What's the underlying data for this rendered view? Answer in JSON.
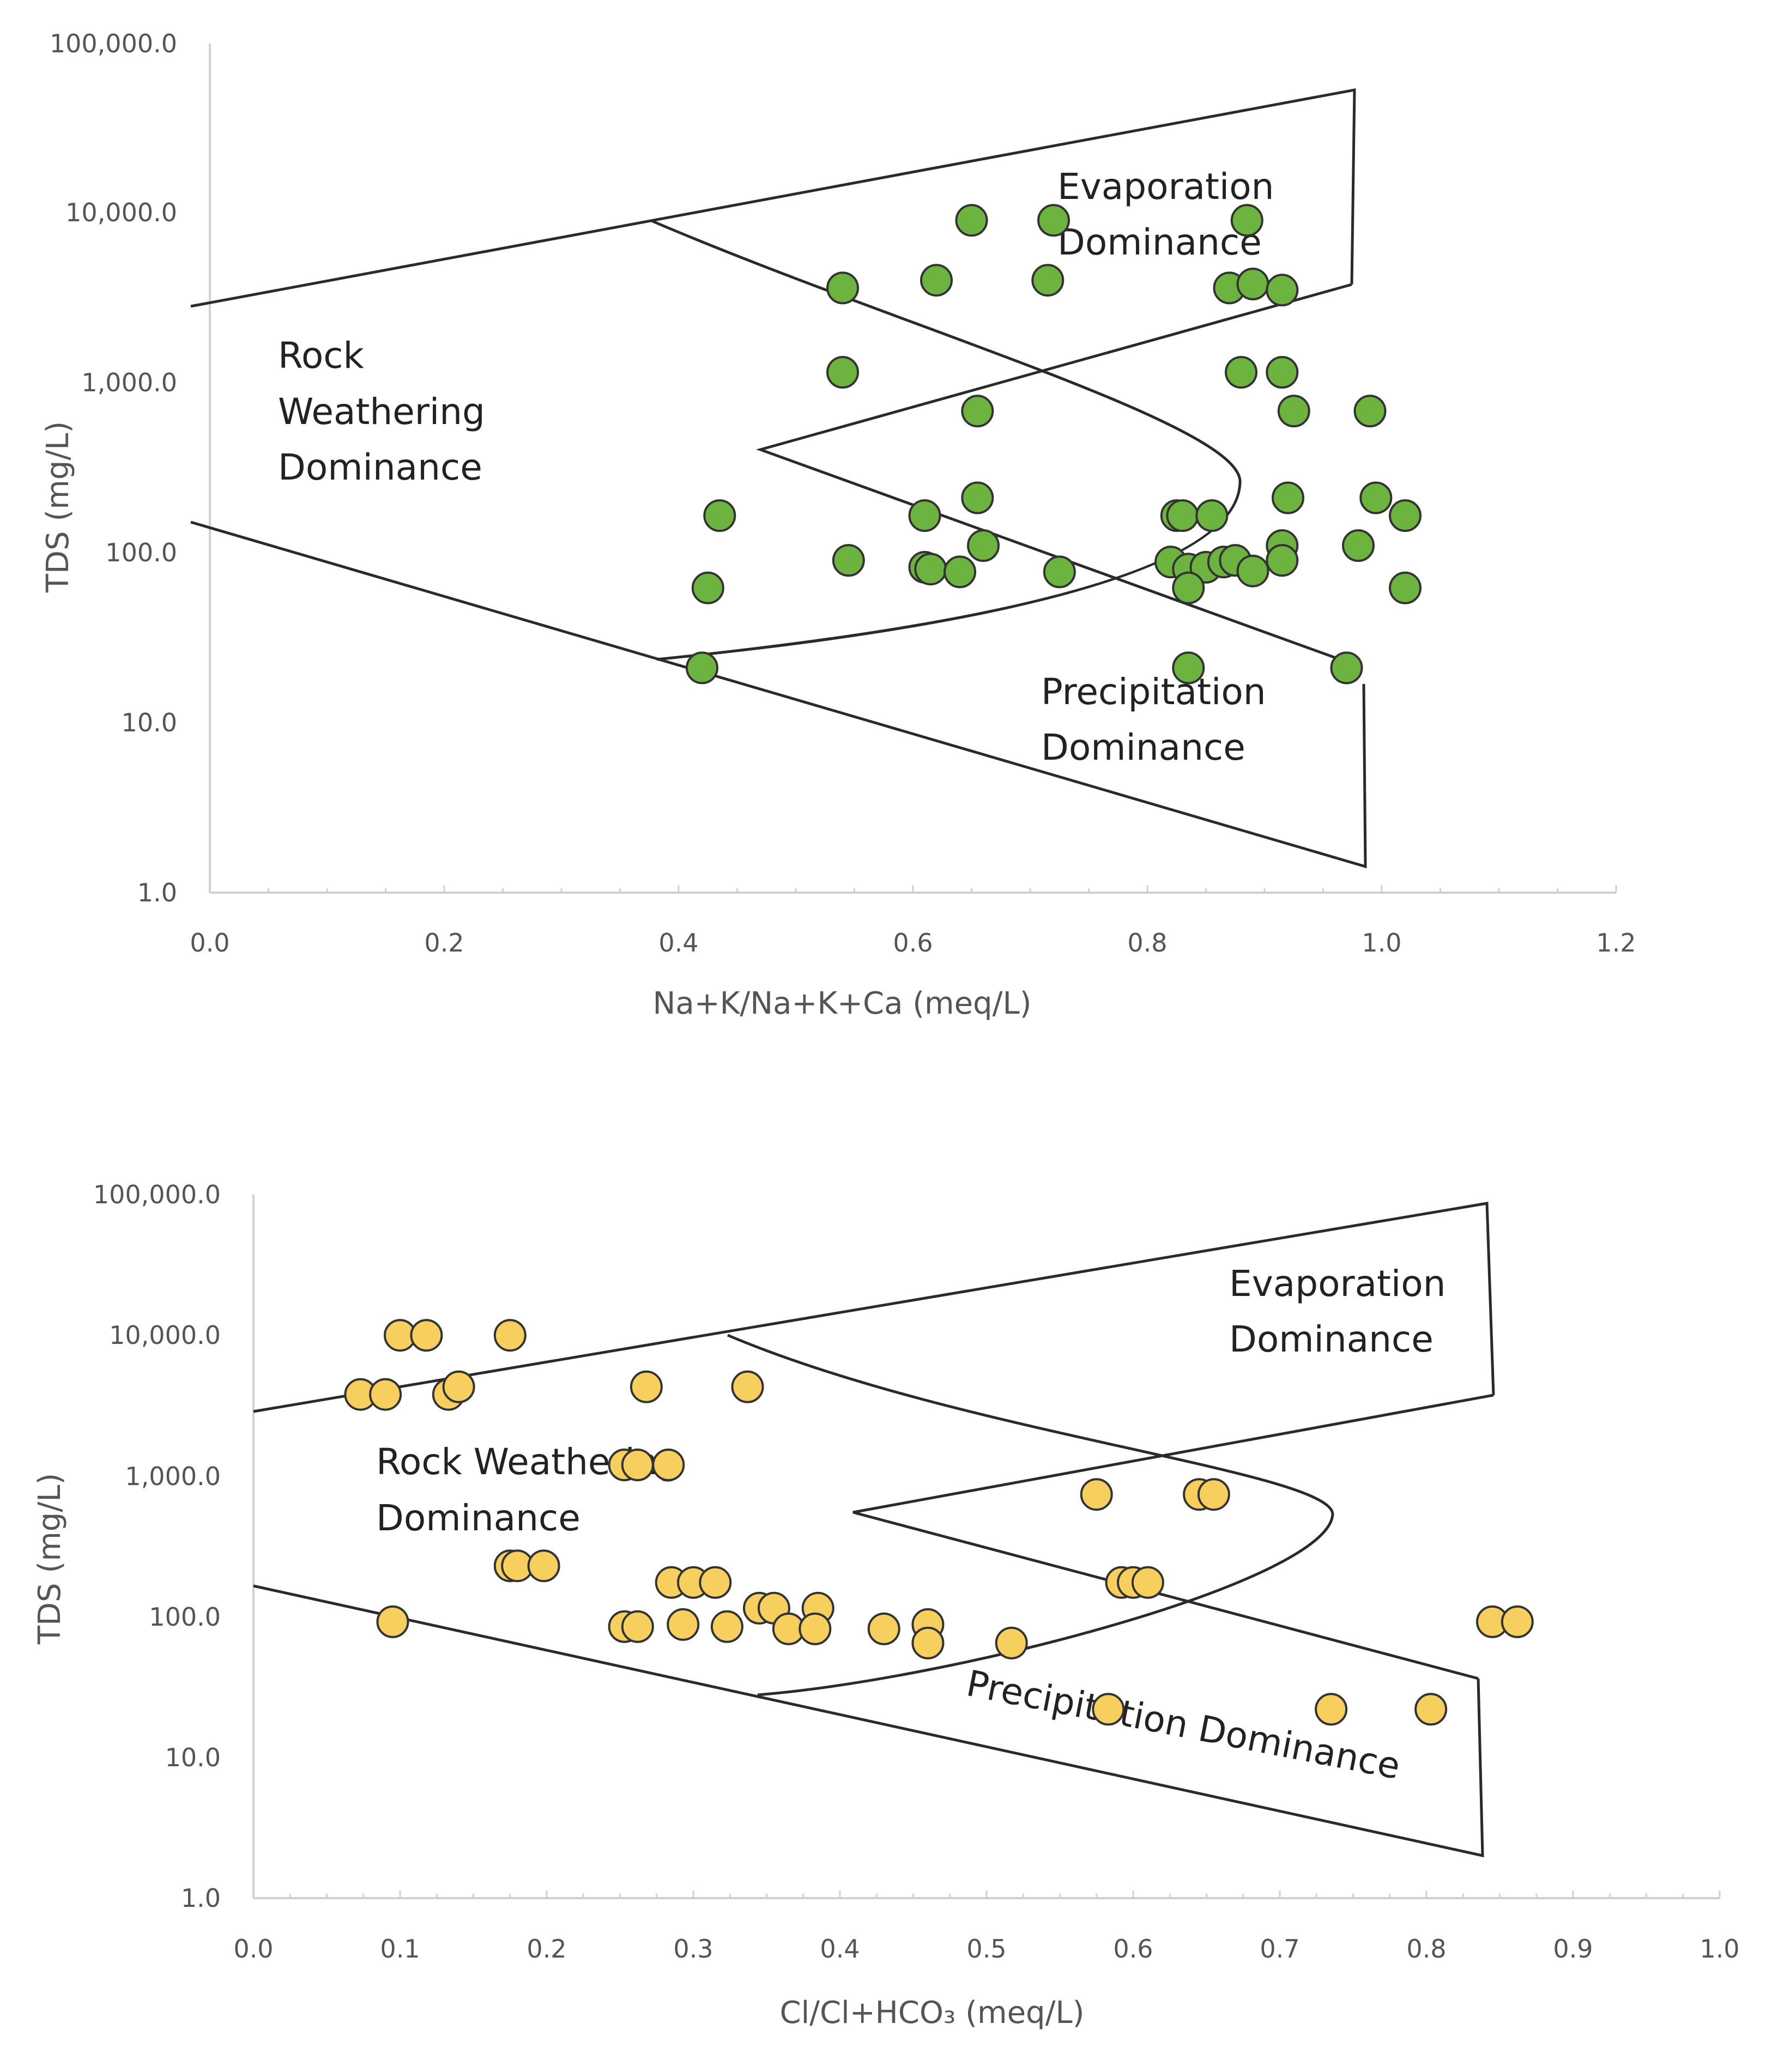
{
  "colors": {
    "na_marker": "#6db33f",
    "cl_marker": "#f7cf5e",
    "marker_stroke": "#333333"
  },
  "chart_data": [
    {
      "type": "scatter",
      "title": "",
      "xlabel": "Na+K/Na+K+Ca (meq/L)",
      "ylabel": "TDS (mg/L)",
      "xlim": [
        0,
        1.2
      ],
      "ylim": [
        1,
        100000
      ],
      "yscale": "log",
      "xticks": [
        "0.0",
        "0.2",
        "0.4",
        "0.6",
        "0.8",
        "1.0",
        "1.2"
      ],
      "yticks": [
        "1.0",
        "10.0",
        "100.0",
        "1,000.0",
        "10,000.0",
        "100,000.0"
      ],
      "regions": {
        "rock": [
          "Rock",
          "Weathering",
          "Dominance"
        ],
        "evap": [
          "Evaporation",
          "Dominance"
        ],
        "precip": [
          "Precipitation",
          "Dominance"
        ]
      },
      "points": [
        {
          "x": 0.65,
          "y": 9000
        },
        {
          "x": 0.72,
          "y": 9000
        },
        {
          "x": 0.885,
          "y": 9000
        },
        {
          "x": 0.54,
          "y": 3600
        },
        {
          "x": 0.62,
          "y": 4000
        },
        {
          "x": 0.715,
          "y": 4000
        },
        {
          "x": 0.87,
          "y": 3600
        },
        {
          "x": 0.89,
          "y": 3800
        },
        {
          "x": 0.915,
          "y": 3500
        },
        {
          "x": 0.54,
          "y": 1150
        },
        {
          "x": 0.88,
          "y": 1150
        },
        {
          "x": 0.915,
          "y": 1150
        },
        {
          "x": 0.655,
          "y": 680
        },
        {
          "x": 0.925,
          "y": 680
        },
        {
          "x": 0.99,
          "y": 680
        },
        {
          "x": 0.655,
          "y": 210
        },
        {
          "x": 0.92,
          "y": 210
        },
        {
          "x": 0.995,
          "y": 210
        },
        {
          "x": 0.435,
          "y": 165
        },
        {
          "x": 0.61,
          "y": 165
        },
        {
          "x": 0.825,
          "y": 165
        },
        {
          "x": 0.83,
          "y": 165
        },
        {
          "x": 0.855,
          "y": 165
        },
        {
          "x": 1.02,
          "y": 165
        },
        {
          "x": 0.66,
          "y": 110
        },
        {
          "x": 0.915,
          "y": 110
        },
        {
          "x": 0.98,
          "y": 110
        },
        {
          "x": 0.545,
          "y": 90
        },
        {
          "x": 0.61,
          "y": 82
        },
        {
          "x": 0.615,
          "y": 80
        },
        {
          "x": 0.64,
          "y": 77
        },
        {
          "x": 0.725,
          "y": 77
        },
        {
          "x": 0.82,
          "y": 88
        },
        {
          "x": 0.835,
          "y": 80
        },
        {
          "x": 0.85,
          "y": 82
        },
        {
          "x": 0.865,
          "y": 88
        },
        {
          "x": 0.875,
          "y": 90
        },
        {
          "x": 0.89,
          "y": 78
        },
        {
          "x": 0.915,
          "y": 90
        },
        {
          "x": 0.425,
          "y": 62
        },
        {
          "x": 0.835,
          "y": 62
        },
        {
          "x": 1.02,
          "y": 62
        },
        {
          "x": 0.42,
          "y": 21
        },
        {
          "x": 0.835,
          "y": 21
        },
        {
          "x": 0.97,
          "y": 21
        }
      ]
    },
    {
      "type": "scatter",
      "title": "",
      "xlabel": "Cl/Cl+HCO₃ (meq/L)",
      "ylabel": "TDS (mg/L)",
      "xlim": [
        0,
        1.0
      ],
      "ylim": [
        1,
        100000
      ],
      "yscale": "log",
      "xticks": [
        "0.0",
        "0.1",
        "0.2",
        "0.3",
        "0.4",
        "0.5",
        "0.6",
        "0.7",
        "0.8",
        "0.9",
        "1.0"
      ],
      "yticks": [
        "1.0",
        "10.0",
        "100.0",
        "1,000.0",
        "10,000.0",
        "100,000.0"
      ],
      "regions": {
        "rock": [
          "Rock Weathering",
          "Dominance"
        ],
        "evap": [
          "Evaporation",
          "Dominance"
        ],
        "precip": [
          "Precipitation Dominance"
        ]
      },
      "points": [
        {
          "x": 0.1,
          "y": 10000
        },
        {
          "x": 0.118,
          "y": 10000
        },
        {
          "x": 0.175,
          "y": 10000
        },
        {
          "x": 0.073,
          "y": 3800
        },
        {
          "x": 0.09,
          "y": 3800
        },
        {
          "x": 0.133,
          "y": 3800
        },
        {
          "x": 0.14,
          "y": 4300
        },
        {
          "x": 0.268,
          "y": 4300
        },
        {
          "x": 0.337,
          "y": 4300
        },
        {
          "x": 0.253,
          "y": 1200
        },
        {
          "x": 0.262,
          "y": 1200
        },
        {
          "x": 0.283,
          "y": 1200
        },
        {
          "x": 0.575,
          "y": 740
        },
        {
          "x": 0.645,
          "y": 740
        },
        {
          "x": 0.655,
          "y": 740
        },
        {
          "x": 0.175,
          "y": 230
        },
        {
          "x": 0.18,
          "y": 230
        },
        {
          "x": 0.198,
          "y": 230
        },
        {
          "x": 0.285,
          "y": 175
        },
        {
          "x": 0.3,
          "y": 175
        },
        {
          "x": 0.315,
          "y": 175
        },
        {
          "x": 0.592,
          "y": 175
        },
        {
          "x": 0.6,
          "y": 175
        },
        {
          "x": 0.61,
          "y": 175
        },
        {
          "x": 0.345,
          "y": 115
        },
        {
          "x": 0.355,
          "y": 115
        },
        {
          "x": 0.385,
          "y": 115
        },
        {
          "x": 0.095,
          "y": 92
        },
        {
          "x": 0.253,
          "y": 85
        },
        {
          "x": 0.262,
          "y": 85
        },
        {
          "x": 0.293,
          "y": 88
        },
        {
          "x": 0.323,
          "y": 85
        },
        {
          "x": 0.365,
          "y": 82
        },
        {
          "x": 0.383,
          "y": 82
        },
        {
          "x": 0.43,
          "y": 82
        },
        {
          "x": 0.46,
          "y": 88
        },
        {
          "x": 0.46,
          "y": 65
        },
        {
          "x": 0.517,
          "y": 65
        },
        {
          "x": 0.845,
          "y": 92
        },
        {
          "x": 0.862,
          "y": 92
        },
        {
          "x": 0.583,
          "y": 22
        },
        {
          "x": 0.735,
          "y": 22
        },
        {
          "x": 0.803,
          "y": 22
        }
      ]
    }
  ]
}
